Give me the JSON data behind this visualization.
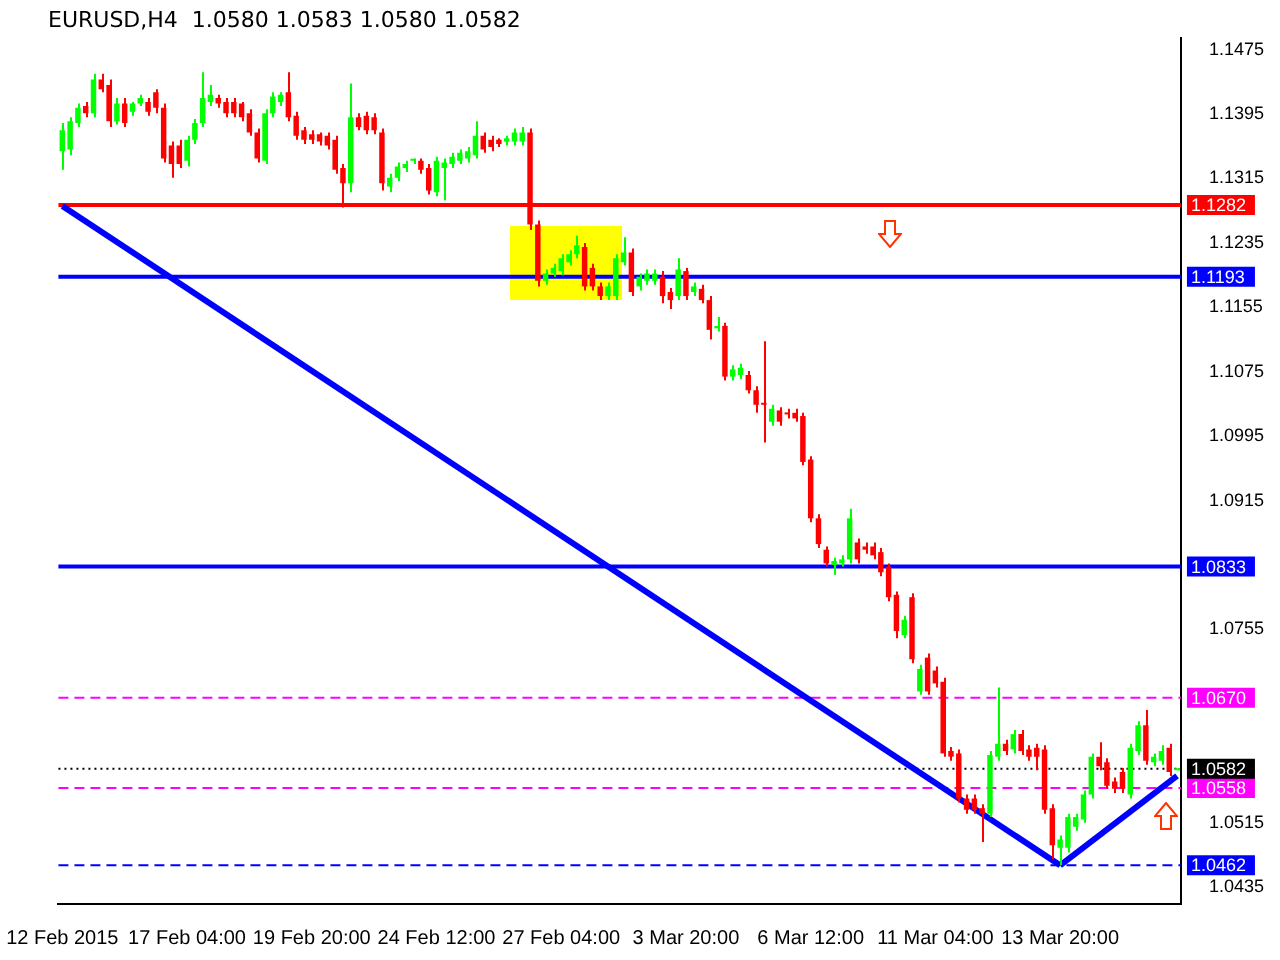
{
  "chart_data": {
    "type": "candlestick",
    "title": "EURUSD,H4  1.0580 1.0583 1.0580 1.0582",
    "categories": [
      "12 Feb 2015",
      null,
      null,
      null,
      null,
      null,
      null,
      null,
      null,
      null,
      null,
      null,
      null,
      null,
      null,
      null,
      "17 Feb 04:00",
      null,
      null,
      null,
      null,
      null,
      null,
      null,
      null,
      null,
      null,
      null,
      null,
      null,
      null,
      null,
      "19 Feb 20:00",
      null,
      null,
      null,
      null,
      null,
      null,
      null,
      null,
      null,
      null,
      null,
      null,
      null,
      null,
      null,
      "24 Feb 12:00",
      null,
      null,
      null,
      null,
      null,
      null,
      null,
      null,
      null,
      null,
      null,
      null,
      null,
      null,
      null,
      "27 Feb 04:00",
      null,
      null,
      null,
      null,
      null,
      null,
      null,
      null,
      null,
      null,
      null,
      null,
      null,
      null,
      null,
      "3 Mar 20:00",
      null,
      null,
      null,
      null,
      null,
      null,
      null,
      null,
      null,
      null,
      null,
      null,
      null,
      null,
      null,
      "6 Mar 12:00",
      null,
      null,
      null,
      null,
      null,
      null,
      null,
      null,
      null,
      null,
      null,
      null,
      null,
      null,
      null,
      "11 Mar 04:00",
      null,
      null,
      null,
      null,
      null,
      null,
      null,
      null,
      null,
      null,
      null,
      null,
      null,
      null,
      null,
      "13 Mar 20:00",
      null,
      null,
      null,
      null,
      null,
      null,
      null,
      null,
      null,
      null,
      null,
      null,
      null,
      null,
      null
    ],
    "ohlc": [
      [
        1.1349,
        1.1384,
        1.1326,
        1.1375
      ],
      [
        1.1351,
        1.1391,
        1.1344,
        1.1386
      ],
      [
        1.1384,
        1.1408,
        1.1379,
        1.1403
      ],
      [
        1.1405,
        1.141,
        1.1391,
        1.1396
      ],
      [
        1.1396,
        1.1445,
        1.1391,
        1.1438
      ],
      [
        1.1438,
        1.1445,
        1.1422,
        1.1426
      ],
      [
        1.1431,
        1.1438,
        1.1379,
        1.1386
      ],
      [
        1.1386,
        1.1415,
        1.1382,
        1.1408
      ],
      [
        1.1408,
        1.1415,
        1.1379,
        1.1384
      ],
      [
        1.1398,
        1.141,
        1.1393,
        1.1408
      ],
      [
        1.1408,
        1.1419,
        1.1405,
        1.1415
      ],
      [
        1.141,
        1.1415,
        1.1393,
        1.1398
      ],
      [
        1.1422,
        1.1426,
        1.1396,
        1.1403
      ],
      [
        1.1403,
        1.1408,
        1.1335,
        1.134
      ],
      [
        1.1356,
        1.1361,
        1.1316,
        1.1333
      ],
      [
        1.1356,
        1.1363,
        1.1328,
        1.1333
      ],
      [
        1.1337,
        1.1368,
        1.133,
        1.1363
      ],
      [
        1.1363,
        1.1389,
        1.1358,
        1.1384
      ],
      [
        1.1384,
        1.1447,
        1.1379,
        1.1415
      ],
      [
        1.141,
        1.1431,
        1.1405,
        1.1419
      ],
      [
        1.1415,
        1.1419,
        1.1403,
        1.1408
      ],
      [
        1.141,
        1.1415,
        1.1391,
        1.1396
      ],
      [
        1.141,
        1.1415,
        1.1391,
        1.1396
      ],
      [
        1.1408,
        1.141,
        1.1386,
        1.1391
      ],
      [
        1.1396,
        1.1401,
        1.1368,
        1.1372
      ],
      [
        1.1372,
        1.1377,
        1.1335,
        1.134
      ],
      [
        1.1337,
        1.1401,
        1.1333,
        1.1396
      ],
      [
        1.1396,
        1.1422,
        1.1391,
        1.1417
      ],
      [
        1.141,
        1.1422,
        1.1405,
        1.1419
      ],
      [
        1.1422,
        1.1447,
        1.1386,
        1.1391
      ],
      [
        1.1393,
        1.1398,
        1.1363,
        1.1368
      ],
      [
        1.1375,
        1.1379,
        1.1358,
        1.1363
      ],
      [
        1.137,
        1.1375,
        1.1358,
        1.1363
      ],
      [
        1.137,
        1.1372,
        1.1356,
        1.1361
      ],
      [
        1.1368,
        1.1372,
        1.1351,
        1.1356
      ],
      [
        1.1363,
        1.1368,
        1.1321,
        1.1326
      ],
      [
        1.1328,
        1.1333,
        1.1279,
        1.1309
      ],
      [
        1.1309,
        1.1433,
        1.1298,
        1.1391
      ],
      [
        1.1391,
        1.1396,
        1.1375,
        1.1379
      ],
      [
        1.1393,
        1.1398,
        1.137,
        1.1375
      ],
      [
        1.1391,
        1.1396,
        1.137,
        1.1375
      ],
      [
        1.1372,
        1.1377,
        1.13,
        1.1309
      ],
      [
        1.1305,
        1.1321,
        1.1298,
        1.1316
      ],
      [
        1.1316,
        1.1335,
        1.1312,
        1.133
      ],
      [
        1.1328,
        1.1337,
        1.1323,
        1.1333
      ],
      [
        1.1337,
        1.134,
        1.1333,
        1.1337
      ],
      [
        1.1337,
        1.134,
        1.1321,
        1.1326
      ],
      [
        1.1328,
        1.1333,
        1.1295,
        1.13
      ],
      [
        1.1298,
        1.1342,
        1.1293,
        1.1337
      ],
      [
        1.1328,
        1.134,
        1.1288,
        1.1335
      ],
      [
        1.1333,
        1.1347,
        1.1328,
        1.1342
      ],
      [
        1.1337,
        1.1351,
        1.1333,
        1.1347
      ],
      [
        1.134,
        1.1354,
        1.1335,
        1.1349
      ],
      [
        1.1344,
        1.1386,
        1.134,
        1.1368
      ],
      [
        1.1368,
        1.1372,
        1.1347,
        1.1351
      ],
      [
        1.1363,
        1.1368,
        1.1349,
        1.1354
      ],
      [
        1.1363,
        1.1365,
        1.1354,
        1.1358
      ],
      [
        1.1361,
        1.1368,
        1.1356,
        1.1365
      ],
      [
        1.1361,
        1.1377,
        1.1356,
        1.1372
      ],
      [
        1.1361,
        1.1379,
        1.1356,
        1.1372
      ],
      [
        1.1372,
        1.1377,
        1.1251,
        1.1258
      ],
      [
        1.1258,
        1.1263,
        1.1181,
        1.1188
      ],
      [
        1.1188,
        1.1202,
        1.1183,
        1.1197
      ],
      [
        1.1197,
        1.1209,
        1.1193,
        1.1204
      ],
      [
        1.12,
        1.1221,
        1.1195,
        1.1216
      ],
      [
        1.1211,
        1.1226,
        1.1207,
        1.1221
      ],
      [
        1.1221,
        1.1244,
        1.1216,
        1.1232
      ],
      [
        1.123,
        1.1235,
        1.1176,
        1.1181
      ],
      [
        1.1204,
        1.1209,
        1.1176,
        1.1181
      ],
      [
        1.1181,
        1.1186,
        1.1164,
        1.1169
      ],
      [
        1.1169,
        1.1186,
        1.1164,
        1.1181
      ],
      [
        1.1169,
        1.1221,
        1.1164,
        1.1216
      ],
      [
        1.1211,
        1.1242,
        1.1207,
        1.1223
      ],
      [
        1.1223,
        1.1228,
        1.1169,
        1.1174
      ],
      [
        1.1181,
        1.1197,
        1.1176,
        1.1193
      ],
      [
        1.1188,
        1.1202,
        1.1183,
        1.1197
      ],
      [
        1.1188,
        1.1202,
        1.1183,
        1.1197
      ],
      [
        1.1193,
        1.12,
        1.116,
        1.1169
      ],
      [
        1.1174,
        1.1179,
        1.1153,
        1.1164
      ],
      [
        1.1169,
        1.1216,
        1.1164,
        1.1202
      ],
      [
        1.12,
        1.1204,
        1.1164,
        1.1169
      ],
      [
        1.1174,
        1.1186,
        1.1169,
        1.1181
      ],
      [
        1.1178,
        1.1183,
        1.116,
        1.1164
      ],
      [
        1.1164,
        1.1169,
        1.1115,
        1.1127
      ],
      [
        1.1129,
        1.1143,
        1.1125,
        1.1132
      ],
      [
        1.1132,
        1.1136,
        1.1064,
        1.1069
      ],
      [
        1.1069,
        1.1083,
        1.1064,
        1.1078
      ],
      [
        1.1071,
        1.1085,
        1.1066,
        1.108
      ],
      [
        1.1071,
        1.1076,
        1.1048,
        1.1052
      ],
      [
        1.1052,
        1.1057,
        1.1024,
        1.1034
      ],
      [
        1.1036,
        1.1113,
        1.0987,
        1.1034
      ],
      [
        1.1013,
        1.1034,
        1.1008,
        1.1029
      ],
      [
        1.1027,
        1.1031,
        1.1008,
        1.1013
      ],
      [
        1.1024,
        1.1029,
        1.1017,
        1.1022
      ],
      [
        1.1024,
        1.1029,
        1.1013,
        1.1017
      ],
      [
        1.102,
        1.1024,
        1.0959,
        1.0963
      ],
      [
        1.0966,
        1.097,
        1.0888,
        1.0893
      ],
      [
        1.0893,
        1.0898,
        1.0856,
        1.0861
      ],
      [
        1.0854,
        1.0858,
        1.0833,
        1.0837
      ],
      [
        1.0835,
        1.0844,
        1.0823,
        1.084
      ],
      [
        1.0837,
        1.0847,
        1.0833,
        1.0842
      ],
      [
        1.0842,
        1.0905,
        1.0837,
        1.0893
      ],
      [
        1.0863,
        1.0868,
        1.0837,
        1.0842
      ],
      [
        1.0858,
        1.0863,
        1.0849,
        1.0854
      ],
      [
        1.0858,
        1.0863,
        1.0842,
        1.0847
      ],
      [
        1.0851,
        1.0856,
        1.0821,
        1.0826
      ],
      [
        1.0833,
        1.0837,
        1.079,
        1.0795
      ],
      [
        1.0798,
        1.0802,
        1.0744,
        1.0753
      ],
      [
        1.0748,
        1.0772,
        1.0744,
        1.0767
      ],
      [
        1.0795,
        1.08,
        1.0713,
        1.0718
      ],
      [
        1.0678,
        1.0711,
        1.0674,
        1.0706
      ],
      [
        1.072,
        1.0725,
        1.0674,
        1.0678
      ],
      [
        1.0704,
        1.0709,
        1.0683,
        1.0688
      ],
      [
        1.069,
        1.0695,
        1.0597,
        1.0601
      ],
      [
        1.0604,
        1.0609,
        1.0592,
        1.0597
      ],
      [
        1.0601,
        1.0606,
        1.054,
        1.0545
      ],
      [
        1.0545,
        1.055,
        1.0526,
        1.0531
      ],
      [
        1.0545,
        1.055,
        1.0526,
        1.0531
      ],
      [
        1.0533,
        1.0538,
        1.0491,
        1.0526
      ],
      [
        1.0526,
        1.0604,
        1.0522,
        1.0599
      ],
      [
        1.0597,
        1.0683,
        1.0592,
        1.0613
      ],
      [
        1.0613,
        1.0618,
        1.0599,
        1.0604
      ],
      [
        1.0606,
        1.063,
        1.0601,
        1.0625
      ],
      [
        1.0625,
        1.063,
        1.0599,
        1.0604
      ],
      [
        1.0606,
        1.0611,
        1.0592,
        1.0597
      ],
      [
        1.0608,
        1.0613,
        1.058,
        1.0597
      ],
      [
        1.0606,
        1.0611,
        1.0526,
        1.0531
      ],
      [
        1.0533,
        1.0538,
        1.047,
        1.0487
      ],
      [
        1.0484,
        1.0499,
        1.0462,
        1.0494
      ],
      [
        1.0484,
        1.0526,
        1.0478,
        1.0522
      ],
      [
        1.051,
        1.0526,
        1.0505,
        1.0522
      ],
      [
        1.0519,
        1.0555,
        1.0515,
        1.055
      ],
      [
        1.055,
        1.0601,
        1.0545,
        1.0597
      ],
      [
        1.0597,
        1.0615,
        1.058,
        1.0585
      ],
      [
        1.059,
        1.0595,
        1.0557,
        1.0561
      ],
      [
        1.0566,
        1.0571,
        1.0552,
        1.0557
      ],
      [
        1.0578,
        1.0583,
        1.0552,
        1.0557
      ],
      [
        1.055,
        1.0613,
        1.0545,
        1.0608
      ],
      [
        1.0604,
        1.0641,
        1.0599,
        1.0636
      ],
      [
        1.0636,
        1.0655,
        1.0587,
        1.0592
      ],
      [
        1.059,
        1.0601,
        1.0585,
        1.0597
      ],
      [
        1.0592,
        1.0611,
        1.0587,
        1.0604
      ],
      [
        1.0608,
        1.0613,
        1.0573,
        1.0578
      ],
      [
        1.058,
        1.0583,
        1.058,
        1.0582
      ]
    ],
    "colors": [
      "#00ff00",
      "#00ff00",
      "#00ff00",
      "#ff0000",
      "#00ff00",
      "#ff0000",
      "#ff0000",
      "#00ff00",
      "#ff0000",
      "#00ff00",
      "#00ff00",
      "#ff0000",
      "#ff0000",
      "#ff0000",
      "#ff0000",
      "#ff0000",
      "#00ff00",
      "#00ff00",
      "#00ff00",
      "#00ff00",
      "#ff0000",
      "#ff0000",
      "#ff0000",
      "#ff0000",
      "#ff0000",
      "#ff0000",
      "#00ff00",
      "#00ff00",
      "#00ff00",
      "#ff0000",
      "#ff0000",
      "#ff0000",
      "#ff0000",
      "#ff0000",
      "#ff0000",
      "#ff0000",
      "#ff0000",
      "#00ff00",
      "#ff0000",
      "#ff0000",
      "#ff0000",
      "#ff0000",
      "#00ff00",
      "#00ff00",
      "#00ff00",
      "#00ff00",
      "#ff0000",
      "#ff0000",
      "#00ff00",
      "#00ff00",
      "#00ff00",
      "#00ff00",
      "#00ff00",
      "#00ff00",
      "#ff0000",
      "#ff0000",
      "#ff0000",
      "#00ff00",
      "#00ff00",
      "#00ff00",
      "#ff0000",
      "#ff0000",
      "#00ff00",
      "#00ff00",
      "#00ff00",
      "#00ff00",
      "#00ff00",
      "#ff0000",
      "#ff0000",
      "#ff0000",
      "#00ff00",
      "#00ff00",
      "#00ff00",
      "#ff0000",
      "#00ff00",
      "#00ff00",
      "#00ff00",
      "#ff0000",
      "#ff0000",
      "#00ff00",
      "#ff0000",
      "#00ff00",
      "#ff0000",
      "#ff0000",
      "#00ff00",
      "#ff0000",
      "#00ff00",
      "#00ff00",
      "#ff0000",
      "#ff0000",
      "#ff0000",
      "#00ff00",
      "#ff0000",
      "#ff0000",
      "#ff0000",
      "#ff0000",
      "#ff0000",
      "#ff0000",
      "#ff0000",
      "#00ff00",
      "#00ff00",
      "#00ff00",
      "#ff0000",
      "#ff0000",
      "#ff0000",
      "#ff0000",
      "#ff0000",
      "#ff0000",
      "#00ff00",
      "#ff0000",
      "#00ff00",
      "#ff0000",
      "#ff0000",
      "#ff0000",
      "#ff0000",
      "#ff0000",
      "#ff0000",
      "#ff0000",
      "#ff0000",
      "#00ff00",
      "#00ff00",
      "#ff0000",
      "#00ff00",
      "#ff0000",
      "#ff0000",
      "#ff0000",
      "#ff0000",
      "#ff0000",
      "#00ff00",
      "#00ff00",
      "#00ff00",
      "#00ff00",
      "#00ff00",
      "#ff0000",
      "#ff0000",
      "#ff0000",
      "#ff0000",
      "#00ff00",
      "#00ff00",
      "#ff0000",
      "#00ff00",
      "#00ff00",
      "#ff0000",
      "#00ff00"
    ],
    "series": [
      {
        "type": "line",
        "color": "#0000ff",
        "values": [
          1.1281,
          null,
          null,
          null,
          null,
          null,
          null,
          null,
          null,
          null,
          null,
          null,
          null,
          null,
          null,
          null,
          null,
          null,
          null,
          null,
          null,
          null,
          null,
          null,
          null,
          null,
          null,
          null,
          null,
          null,
          null,
          null,
          null,
          null,
          null,
          null,
          null,
          null,
          null,
          null,
          null,
          null,
          null,
          null,
          null,
          null,
          null,
          null,
          null,
          null,
          null,
          null,
          null,
          null,
          null,
          null,
          null,
          null,
          null,
          null,
          null,
          null,
          null,
          null,
          null,
          null,
          null,
          null,
          null,
          null,
          null,
          null,
          null,
          null,
          null,
          null,
          null,
          null,
          null,
          null,
          null,
          null,
          null,
          null,
          null,
          null,
          null,
          null,
          null,
          null,
          null,
          null,
          null,
          null,
          null,
          null,
          null,
          null,
          null,
          null,
          null,
          null,
          null,
          null,
          null,
          null,
          null,
          null,
          null,
          null,
          null,
          null,
          null,
          null,
          null,
          null,
          null,
          null,
          null,
          null,
          null,
          null,
          null,
          null,
          null,
          null,
          null,
          null,
          1.0462,
          null,
          null,
          null,
          null,
          null,
          null,
          null,
          null,
          null,
          null,
          null,
          null,
          null,
          null,
          null
        ]
      },
      {
        "type": "line",
        "color": "#0000ff",
        "values": [
          null,
          null,
          null,
          null,
          null,
          null,
          null,
          null,
          null,
          null,
          null,
          null,
          null,
          null,
          null,
          null,
          null,
          null,
          null,
          null,
          null,
          null,
          null,
          null,
          null,
          null,
          null,
          null,
          null,
          null,
          null,
          null,
          null,
          null,
          null,
          null,
          null,
          null,
          null,
          null,
          null,
          null,
          null,
          null,
          null,
          null,
          null,
          null,
          null,
          null,
          null,
          null,
          null,
          null,
          null,
          null,
          null,
          null,
          null,
          null,
          null,
          null,
          null,
          null,
          null,
          null,
          null,
          null,
          null,
          null,
          null,
          null,
          null,
          null,
          null,
          null,
          null,
          null,
          null,
          null,
          null,
          null,
          null,
          null,
          null,
          null,
          null,
          null,
          null,
          null,
          null,
          null,
          null,
          null,
          null,
          null,
          null,
          null,
          null,
          null,
          null,
          null,
          null,
          null,
          null,
          null,
          null,
          null,
          null,
          null,
          null,
          null,
          null,
          null,
          null,
          null,
          null,
          null,
          null,
          null,
          null,
          null,
          null,
          null,
          null,
          null,
          null,
          null,
          1.0462,
          null,
          null,
          null,
          null,
          null,
          null,
          null,
          null,
          null,
          null,
          null,
          null,
          null,
          null,
          1.0573
        ]
      }
    ],
    "ylim": [
      1.0414,
      1.1489
    ],
    "yticks": [
      1.0435,
      1.0515,
      1.0755,
      1.0915,
      1.0995,
      1.1075,
      1.1155,
      1.1235,
      1.1315,
      1.1395,
      1.1475
    ],
    "ref_lines": [
      {
        "axis": "y",
        "value": 1.1282,
        "label": "1.1282",
        "color": "#ff0000",
        "line_style": "solid"
      },
      {
        "axis": "y",
        "value": 1.1193,
        "label": "1.1193",
        "color": "#0000ff",
        "line_style": "solid"
      },
      {
        "axis": "y",
        "value": 1.0833,
        "label": "1.0833",
        "color": "#0000ff",
        "line_style": "solid"
      },
      {
        "axis": "y",
        "value": 1.067,
        "label": "1.0670",
        "color": "#ff00ff",
        "line_style": "dashed"
      },
      {
        "axis": "y",
        "value": 1.0558,
        "label": "1.0558",
        "color": "#ff00ff",
        "line_style": "dashed"
      },
      {
        "axis": "y",
        "value": 1.0462,
        "label": "1.0462",
        "color": "#0000ff",
        "line_style": "dashed"
      },
      {
        "axis": "y",
        "value": 1.0582,
        "label": "1.0582",
        "color": "#000000",
        "line_style": "dotted"
      }
    ]
  }
}
